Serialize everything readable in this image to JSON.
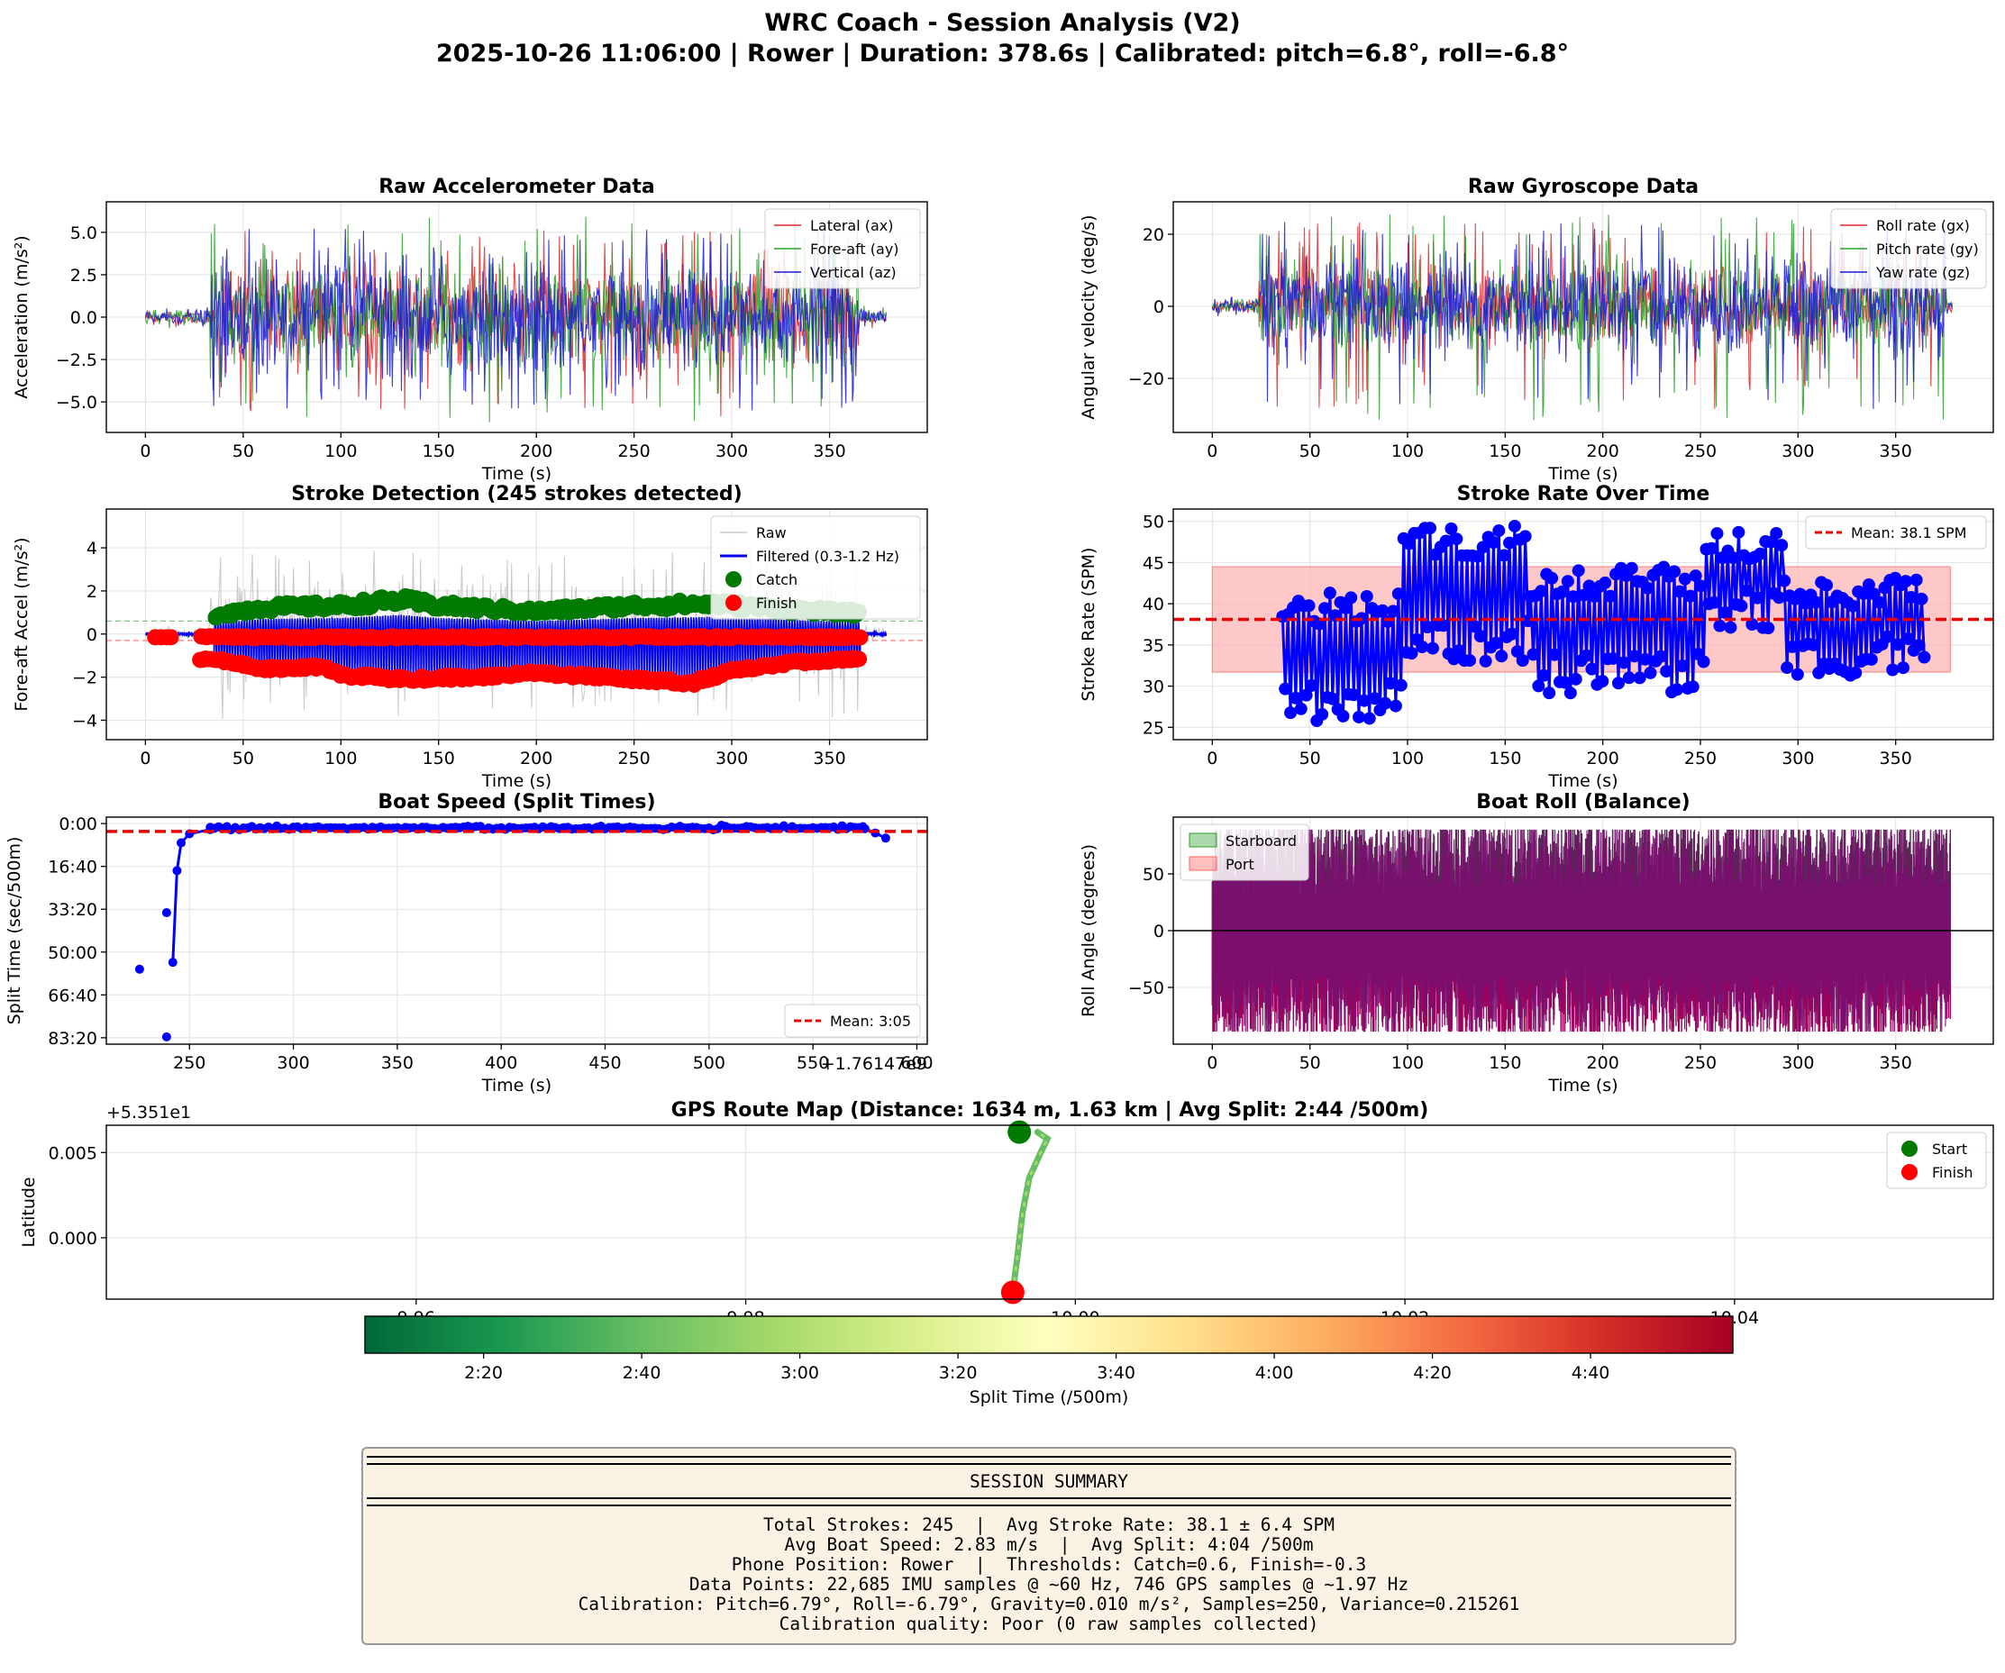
{
  "figure": {
    "title_line1": "WRC Coach - Session Analysis (V2)",
    "title_line2": "2025-10-26 11:06:00 | Rower | Duration: 378.6s | Calibrated: pitch=6.8°, roll=-6.8°"
  },
  "colors": {
    "lateral": "#e0292a",
    "fore_aft": "#2ca02c",
    "vertical": "#1a1ad6",
    "raw_grey": "#c8c8c8",
    "filtered": "#0000ee",
    "catch": "#007a00",
    "finish": "#ff0000",
    "mean_line": "#ee0000",
    "rate_band": "#ffb0b0",
    "roll_purple": "#7a1070",
    "starboard": "#2ca02c",
    "port": "#ff6060",
    "summary_bg": "#faf3e3"
  },
  "chart_data": [
    {
      "id": "raw-accel",
      "type": "line",
      "title": "Raw Accelerometer Data",
      "xlabel": "Time (s)",
      "ylabel": "Acceleration (m/s²)",
      "xlim": [
        -20,
        400
      ],
      "ylim": [
        -6.8,
        6.8
      ],
      "xticks": [
        0,
        50,
        100,
        150,
        200,
        250,
        300,
        350
      ],
      "yticks": [
        -5.0,
        -2.5,
        0.0,
        2.5,
        5.0
      ],
      "ytick_labels": [
        "−5.0",
        "−2.5",
        "0.0",
        "2.5",
        "5.0"
      ],
      "grid": true,
      "legend_position": "top-right",
      "signal": {
        "x_start": 0,
        "x_end": 379,
        "active_start": 33,
        "active_end": 365,
        "typical_amplitude": 2.8,
        "peak_max": 6.0,
        "peak_min": -6.2
      },
      "series": [
        {
          "name": "Lateral (ax)",
          "color": "#e0292a"
        },
        {
          "name": "Fore-aft (ay)",
          "color": "#2ca02c"
        },
        {
          "name": "Vertical (az)",
          "color": "#1a1ad6"
        }
      ]
    },
    {
      "id": "raw-gyro",
      "type": "line",
      "title": "Raw Gyroscope Data",
      "xlabel": "Time (s)",
      "ylabel": "Angular velocity (deg/s)",
      "xlim": [
        -20,
        400
      ],
      "ylim": [
        -35,
        29
      ],
      "xticks": [
        0,
        50,
        100,
        150,
        200,
        250,
        300,
        350
      ],
      "yticks": [
        -20,
        0,
        20
      ],
      "ytick_labels": [
        "−20",
        "0",
        "20"
      ],
      "grid": true,
      "legend_position": "top-right",
      "signal": {
        "x_start": 0,
        "x_end": 379,
        "active_start": 24,
        "active_end": 376,
        "typical_amplitude": 11,
        "peak_max": 26,
        "peak_min": -32
      },
      "series": [
        {
          "name": "Roll rate (gx)",
          "color": "#e0292a"
        },
        {
          "name": "Pitch rate (gy)",
          "color": "#2ca02c"
        },
        {
          "name": "Yaw rate (gz)",
          "color": "#1a1ad6"
        }
      ]
    },
    {
      "id": "stroke-detection",
      "type": "scatter",
      "title": "Stroke Detection (245 strokes detected)",
      "xlabel": "Time (s)",
      "ylabel": "Fore-aft Accel (m/s²)",
      "xlim": [
        -20,
        400
      ],
      "ylim": [
        -4.9,
        5.8
      ],
      "xticks": [
        0,
        50,
        100,
        150,
        200,
        250,
        300,
        350
      ],
      "yticks": [
        -4,
        -2,
        0,
        2,
        4
      ],
      "ytick_labels": [
        "−4",
        "−2",
        "0",
        "2",
        "4"
      ],
      "grid": true,
      "legend_position": "top-right",
      "catch_threshold": 0.6,
      "finish_threshold": -0.3,
      "catch_envelope": [
        [
          35,
          1.0
        ],
        [
          60,
          1.4
        ],
        [
          100,
          1.5
        ],
        [
          130,
          1.8
        ],
        [
          150,
          1.5
        ],
        [
          200,
          1.2
        ],
        [
          250,
          1.5
        ],
        [
          290,
          1.6
        ],
        [
          330,
          1.3
        ],
        [
          365,
          1.1
        ]
      ],
      "finish_envelope": [
        [
          35,
          -1.2
        ],
        [
          60,
          -1.7
        ],
        [
          90,
          -1.6
        ],
        [
          100,
          -2.0
        ],
        [
          130,
          -2.2
        ],
        [
          170,
          -2.1
        ],
        [
          200,
          -1.9
        ],
        [
          250,
          -2.2
        ],
        [
          280,
          -2.4
        ],
        [
          300,
          -1.8
        ],
        [
          330,
          -1.4
        ],
        [
          365,
          -1.2
        ]
      ],
      "series": [
        {
          "name": "Raw",
          "color": "#c8c8c8"
        },
        {
          "name": "Filtered (0.3-1.2 Hz)",
          "color": "#0000ee"
        },
        {
          "name": "Catch",
          "color": "#007a00"
        },
        {
          "name": "Finish",
          "color": "#ff0000"
        }
      ]
    },
    {
      "id": "stroke-rate",
      "type": "line",
      "title": "Stroke Rate Over Time",
      "xlabel": "Time (s)",
      "ylabel": "Stroke Rate (SPM)",
      "xlim": [
        -20,
        400
      ],
      "ylim": [
        23.5,
        51.5
      ],
      "xticks": [
        0,
        50,
        100,
        150,
        200,
        250,
        300,
        350
      ],
      "yticks": [
        25,
        30,
        35,
        40,
        45,
        50
      ],
      "grid": true,
      "legend_position": "top-right",
      "mean": 38.1,
      "std": 6.4,
      "band_x": [
        0,
        378
      ],
      "rate_segments": [
        {
          "t0": 36,
          "t1": 98,
          "low": 25.5,
          "high": 41.5
        },
        {
          "t0": 98,
          "t1": 163,
          "low": 33.0,
          "high": 49.5
        },
        {
          "t0": 163,
          "t1": 253,
          "low": 29.0,
          "high": 44.5
        },
        {
          "t0": 253,
          "t1": 293,
          "low": 37.0,
          "high": 49.0
        },
        {
          "t0": 293,
          "t1": 366,
          "low": 31.0,
          "high": 43.5
        }
      ],
      "series": [
        {
          "name": "Mean: 38.1 SPM",
          "color": "#ee0000"
        }
      ]
    },
    {
      "id": "boat-speed",
      "type": "line",
      "title": "Boat Speed (Split Times)",
      "xlabel": "Time (s)",
      "ylabel": "Split Time (sec/500m)",
      "x_offset_label": "+1.76147e9",
      "xlim": [
        210,
        605
      ],
      "ylim": [
        5150,
        -150
      ],
      "xticks": [
        250,
        300,
        350,
        400,
        450,
        500,
        550,
        600
      ],
      "yticks": [
        0,
        1000,
        2000,
        3000,
        4000,
        5000
      ],
      "ytick_labels": [
        "0:00",
        "16:40",
        "33:20",
        "50:00",
        "66:40",
        "83:20"
      ],
      "grid": true,
      "legend_position": "bottom-right",
      "mean_split_seconds": 185,
      "points": [
        [
          226,
          3400
        ],
        [
          239,
          4980
        ],
        [
          239,
          2080
        ],
        [
          242,
          3240
        ],
        [
          244,
          1100
        ],
        [
          246,
          450
        ],
        [
          250,
          240
        ],
        [
          260,
          140
        ]
      ],
      "plateau": {
        "t0": 260,
        "t1": 575,
        "value": 100
      },
      "tail": [
        [
          575,
          120
        ],
        [
          580,
          220
        ],
        [
          585,
          340
        ]
      ],
      "series": [
        {
          "name": "Mean: 3:05",
          "color": "#ee0000"
        }
      ]
    },
    {
      "id": "boat-roll",
      "type": "area",
      "title": "Boat Roll (Balance)",
      "xlabel": "Time (s)",
      "ylabel": "Roll Angle (degrees)",
      "xlim": [
        -20,
        400
      ],
      "ylim": [
        -100,
        100
      ],
      "xticks": [
        0,
        50,
        100,
        150,
        200,
        250,
        300,
        350
      ],
      "yticks": [
        -50,
        0,
        50
      ],
      "ytick_labels": [
        "−50",
        "0",
        "50"
      ],
      "grid": true,
      "legend_position": "top-left",
      "signal": {
        "x_start": 0,
        "x_end": 378,
        "clip": 89
      },
      "series": [
        {
          "name": "Starboard",
          "color": "#2ca02c"
        },
        {
          "name": "Port",
          "color": "#ff6060"
        }
      ]
    },
    {
      "id": "gps-route",
      "type": "scatter",
      "title": "GPS Route Map (Distance: 1634 m, 1.63 km | Avg Split: 2:44 /500m)",
      "xlabel": "",
      "ylabel": "Latitude",
      "y_offset_label": "+5.351e1",
      "xlim": [
        9.9412,
        10.0557
      ],
      "ylim": [
        -0.0036,
        0.0066
      ],
      "xticks": [
        9.96,
        9.98,
        10.0,
        10.02,
        10.04
      ],
      "xtick_labels": [
        "9.96",
        "9.98",
        "10.00",
        "10.02",
        "10.04"
      ],
      "yticks": [
        0.0,
        0.005
      ],
      "ytick_labels": [
        "0.000",
        "0.005"
      ],
      "grid": true,
      "legend_position": "top-right",
      "route": [
        [
          9.9962,
          -0.0032
        ],
        [
          9.9965,
          -0.001
        ],
        [
          9.9968,
          0.0015
        ],
        [
          9.9972,
          0.0035
        ],
        [
          9.9979,
          0.005
        ],
        [
          9.9983,
          0.0058
        ],
        [
          9.9977,
          0.0062
        ]
      ],
      "start": [
        9.9966,
        0.0062
      ],
      "finish": [
        9.9962,
        -0.0032
      ],
      "series": [
        {
          "name": "Start",
          "color": "#007a00"
        },
        {
          "name": "Finish",
          "color": "#ff0000"
        }
      ]
    },
    {
      "id": "split-colorbar",
      "type": "heatmap",
      "label": "Split Time (/500m)",
      "range": [
        125,
        298
      ],
      "ticks": [
        140,
        160,
        180,
        200,
        220,
        240,
        260,
        280
      ],
      "tick_labels": [
        "2:20",
        "2:40",
        "3:00",
        "3:20",
        "3:40",
        "4:00",
        "4:20",
        "4:40"
      ],
      "colormap": "RdYlGn_r"
    }
  ],
  "summary": {
    "heading": "SESSION SUMMARY",
    "line1": "Total Strokes: 245  |  Avg Stroke Rate: 38.1 ± 6.4 SPM",
    "line2": "Avg Boat Speed: 2.83 m/s  |  Avg Split: 4:04 /500m",
    "line3": "Phone Position: Rower  |  Thresholds: Catch=0.6, Finish=-0.3",
    "line4": "Data Points: 22,685 IMU samples @ ~60 Hz, 746 GPS samples @ ~1.97 Hz",
    "line5": "Calibration: Pitch=6.79°, Roll=-6.79°, Gravity=0.010 m/s², Samples=250, Variance=0.215261",
    "line6": "Calibration quality: Poor (0 raw samples collected)"
  }
}
